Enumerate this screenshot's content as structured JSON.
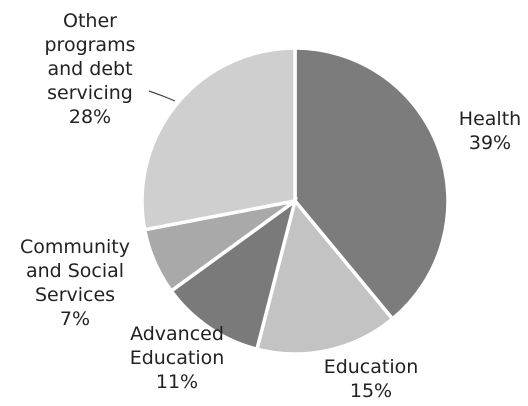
{
  "chart_data": {
    "type": "pie",
    "title": "",
    "unit": "%",
    "slices": [
      {
        "name": "Health",
        "value": 39,
        "label_lines": [
          "Health",
          "39%"
        ],
        "color": "#7c7c7c"
      },
      {
        "name": "Education",
        "value": 15,
        "label_lines": [
          "Education",
          "15%"
        ],
        "color": "#c3c3c3"
      },
      {
        "name": "Advanced Education",
        "value": 11,
        "label_lines": [
          "Advanced",
          "Education",
          "11%"
        ],
        "color": "#7a7a7a"
      },
      {
        "name": "Community and Social Services",
        "value": 7,
        "label_lines": [
          "Community",
          "and Social",
          "Services",
          "7%"
        ],
        "color": "#a9a9a9"
      },
      {
        "name": "Other programs and debt servicing",
        "value": 28,
        "label_lines": [
          "Other",
          "programs",
          "and debt",
          "servicing",
          "28%"
        ],
        "color": "#cfcfcf"
      }
    ]
  }
}
